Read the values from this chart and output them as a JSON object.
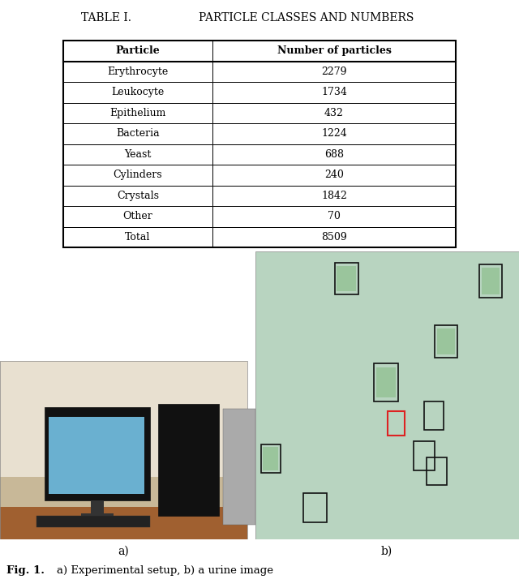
{
  "title_label": "TABLE I.",
  "title_text": "Particle Classes and Numbers",
  "col_headers": [
    "Particle",
    "Number of particles"
  ],
  "rows": [
    [
      "Erythrocyte",
      "2279"
    ],
    [
      "Leukocyte",
      "1734"
    ],
    [
      "Epithelium",
      "432"
    ],
    [
      "Bacteria",
      "1224"
    ],
    [
      "Yeast",
      "688"
    ],
    [
      "Cylinders",
      "240"
    ],
    [
      "Crystals",
      "1842"
    ],
    [
      "Other",
      "70"
    ],
    [
      "Total",
      "8509"
    ]
  ],
  "fig_label": "Fig. 1.",
  "fig_caption": "a) Experimental setup, b) a urine image",
  "sublabel_a": "a)",
  "sublabel_b": "b)",
  "bg_color": "#ffffff",
  "wall_color": "#e8e0d0",
  "desk_color": "#a06030",
  "monitor_dark": "#111111",
  "monitor_screen": "#6ab0d0",
  "urine_bg": "#b8d4c0",
  "particle_box_color": "#111111",
  "red_box_color": "#dd2222",
  "green_fill": "#90c090"
}
